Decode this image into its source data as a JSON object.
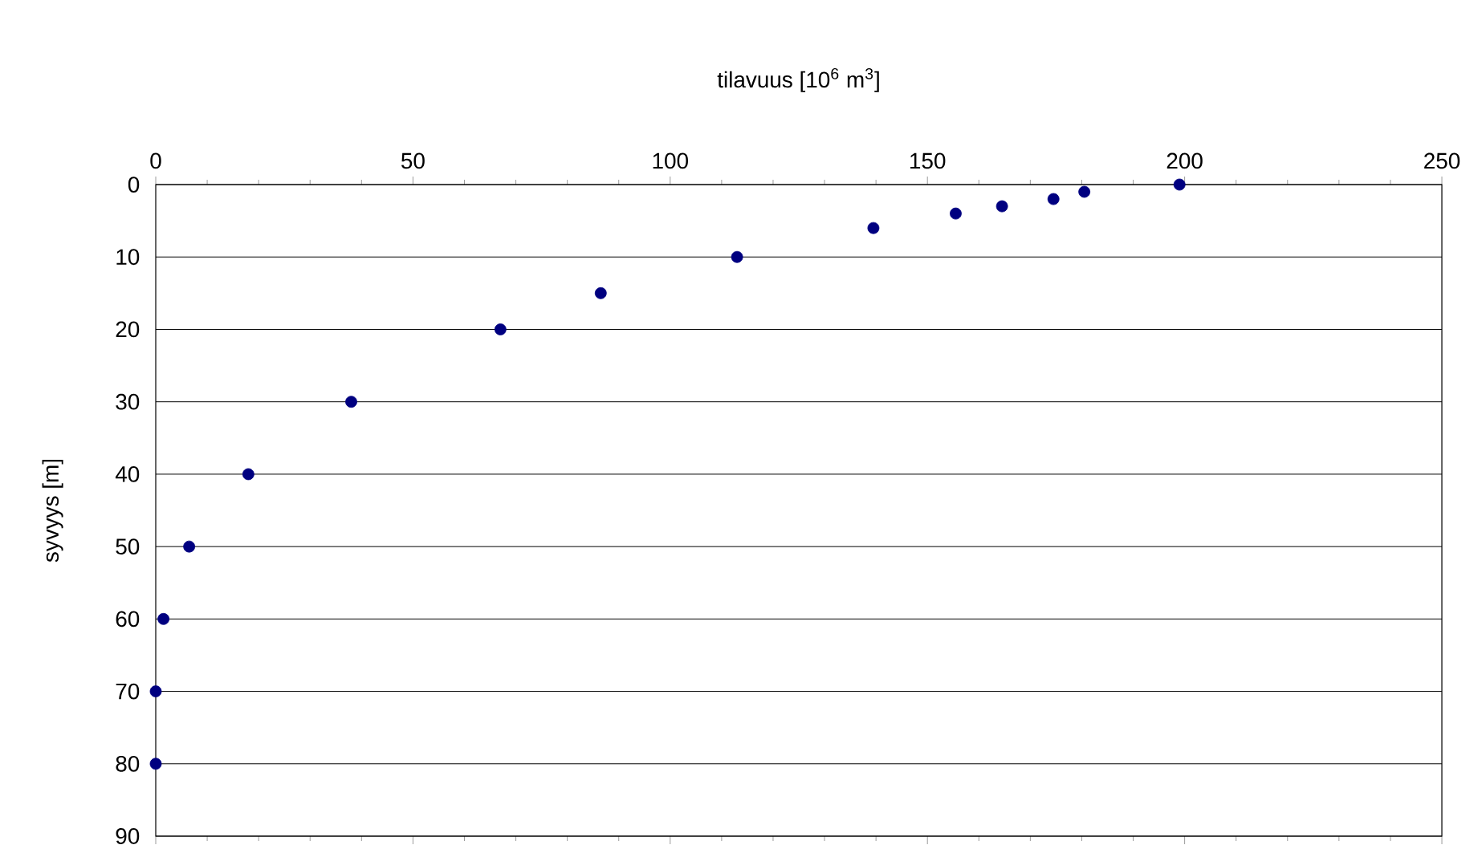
{
  "chart_data": {
    "type": "scatter",
    "xlabel": "tilavuus [10$^{6}$ m$^{3}$]",
    "ylabel": "syvyys [m]",
    "x": [
      0,
      0,
      1.5,
      6.5,
      18,
      38,
      67,
      86.5,
      113,
      139.5,
      155.5,
      164.5,
      174.5,
      180.5,
      199
    ],
    "values": [
      80,
      70,
      60,
      50,
      40,
      30,
      20,
      15,
      10,
      6,
      4,
      3,
      2,
      1,
      0
    ],
    "color": "#000080",
    "marker": "circle",
    "grid": "y",
    "legend": false,
    "xlim": [
      0,
      250
    ],
    "xticks": [
      0,
      50,
      100,
      150,
      200,
      250
    ],
    "ylim": [
      90,
      0
    ],
    "yticks": [
      0,
      10,
      20,
      30,
      40,
      50,
      60,
      70,
      80,
      90
    ]
  }
}
